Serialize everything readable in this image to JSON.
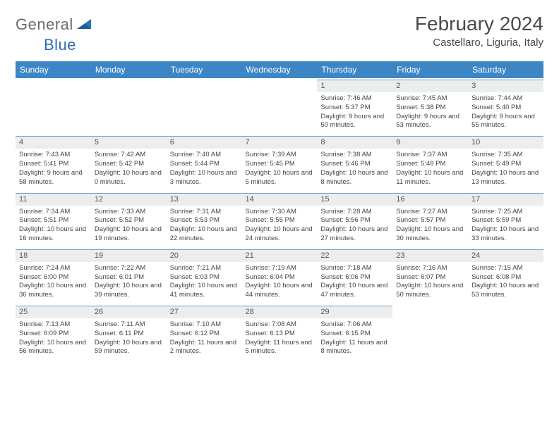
{
  "brand": {
    "word1": "General",
    "word2": "Blue"
  },
  "title": "February 2024",
  "location": "Castellaro, Liguria, Italy",
  "colors": {
    "header_bg": "#3d86c6",
    "header_text": "#ffffff",
    "daynum_bg": "#eceded",
    "cell_border": "#6ea0c9",
    "text": "#3a3a3a",
    "logo_gray": "#6a6a6a",
    "logo_blue": "#2c6fb5",
    "brand_shape": "#2c74b3"
  },
  "day_headers": [
    "Sunday",
    "Monday",
    "Tuesday",
    "Wednesday",
    "Thursday",
    "Friday",
    "Saturday"
  ],
  "weeks": [
    [
      null,
      null,
      null,
      null,
      {
        "n": "1",
        "sr": "7:46 AM",
        "ss": "5:37 PM",
        "dl": "9 hours and 50 minutes."
      },
      {
        "n": "2",
        "sr": "7:45 AM",
        "ss": "5:38 PM",
        "dl": "9 hours and 53 minutes."
      },
      {
        "n": "3",
        "sr": "7:44 AM",
        "ss": "5:40 PM",
        "dl": "9 hours and 55 minutes."
      }
    ],
    [
      {
        "n": "4",
        "sr": "7:43 AM",
        "ss": "5:41 PM",
        "dl": "9 hours and 58 minutes."
      },
      {
        "n": "5",
        "sr": "7:42 AM",
        "ss": "5:42 PM",
        "dl": "10 hours and 0 minutes."
      },
      {
        "n": "6",
        "sr": "7:40 AM",
        "ss": "5:44 PM",
        "dl": "10 hours and 3 minutes."
      },
      {
        "n": "7",
        "sr": "7:39 AM",
        "ss": "5:45 PM",
        "dl": "10 hours and 5 minutes."
      },
      {
        "n": "8",
        "sr": "7:38 AM",
        "ss": "5:46 PM",
        "dl": "10 hours and 8 minutes."
      },
      {
        "n": "9",
        "sr": "7:37 AM",
        "ss": "5:48 PM",
        "dl": "10 hours and 11 minutes."
      },
      {
        "n": "10",
        "sr": "7:35 AM",
        "ss": "5:49 PM",
        "dl": "10 hours and 13 minutes."
      }
    ],
    [
      {
        "n": "11",
        "sr": "7:34 AM",
        "ss": "5:51 PM",
        "dl": "10 hours and 16 minutes."
      },
      {
        "n": "12",
        "sr": "7:33 AM",
        "ss": "5:52 PM",
        "dl": "10 hours and 19 minutes."
      },
      {
        "n": "13",
        "sr": "7:31 AM",
        "ss": "5:53 PM",
        "dl": "10 hours and 22 minutes."
      },
      {
        "n": "14",
        "sr": "7:30 AM",
        "ss": "5:55 PM",
        "dl": "10 hours and 24 minutes."
      },
      {
        "n": "15",
        "sr": "7:28 AM",
        "ss": "5:56 PM",
        "dl": "10 hours and 27 minutes."
      },
      {
        "n": "16",
        "sr": "7:27 AM",
        "ss": "5:57 PM",
        "dl": "10 hours and 30 minutes."
      },
      {
        "n": "17",
        "sr": "7:25 AM",
        "ss": "5:59 PM",
        "dl": "10 hours and 33 minutes."
      }
    ],
    [
      {
        "n": "18",
        "sr": "7:24 AM",
        "ss": "6:00 PM",
        "dl": "10 hours and 36 minutes."
      },
      {
        "n": "19",
        "sr": "7:22 AM",
        "ss": "6:01 PM",
        "dl": "10 hours and 39 minutes."
      },
      {
        "n": "20",
        "sr": "7:21 AM",
        "ss": "6:03 PM",
        "dl": "10 hours and 41 minutes."
      },
      {
        "n": "21",
        "sr": "7:19 AM",
        "ss": "6:04 PM",
        "dl": "10 hours and 44 minutes."
      },
      {
        "n": "22",
        "sr": "7:18 AM",
        "ss": "6:06 PM",
        "dl": "10 hours and 47 minutes."
      },
      {
        "n": "23",
        "sr": "7:16 AM",
        "ss": "6:07 PM",
        "dl": "10 hours and 50 minutes."
      },
      {
        "n": "24",
        "sr": "7:15 AM",
        "ss": "6:08 PM",
        "dl": "10 hours and 53 minutes."
      }
    ],
    [
      {
        "n": "25",
        "sr": "7:13 AM",
        "ss": "6:09 PM",
        "dl": "10 hours and 56 minutes."
      },
      {
        "n": "26",
        "sr": "7:11 AM",
        "ss": "6:11 PM",
        "dl": "10 hours and 59 minutes."
      },
      {
        "n": "27",
        "sr": "7:10 AM",
        "ss": "6:12 PM",
        "dl": "11 hours and 2 minutes."
      },
      {
        "n": "28",
        "sr": "7:08 AM",
        "ss": "6:13 PM",
        "dl": "11 hours and 5 minutes."
      },
      {
        "n": "29",
        "sr": "7:06 AM",
        "ss": "6:15 PM",
        "dl": "11 hours and 8 minutes."
      },
      null,
      null
    ]
  ],
  "labels": {
    "sunrise": "Sunrise: ",
    "sunset": "Sunset: ",
    "daylight": "Daylight: "
  }
}
